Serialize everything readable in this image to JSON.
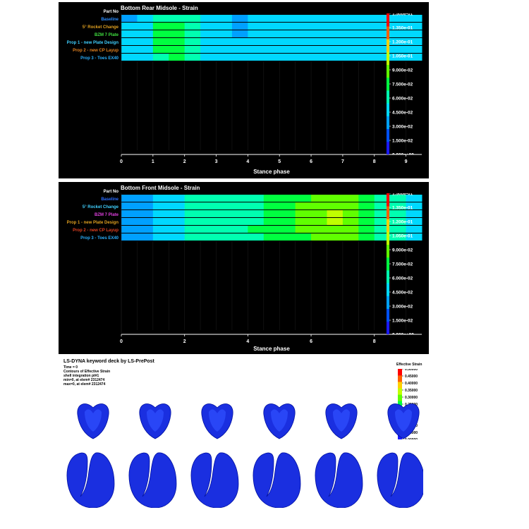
{
  "panels": [
    {
      "title": "Bottom Rear Midsole - Strain",
      "xlabel": "Stance phase",
      "row_header": "Part No",
      "rows": [
        "Baseline",
        "5° Rocket Change",
        "BZM 7 Plate",
        "Prop 1 - new Plate Design",
        "Prop 2 - new CP Layup",
        "Prop 3 - Toes EX40"
      ],
      "row_label_colors": [
        "#2a8cff",
        "#e0a020",
        "#40e040",
        "#40d0ff",
        "#e08020",
        "#2ab0ff"
      ],
      "x_ticks": [
        "0",
        "1",
        "2",
        "3",
        "4",
        "5",
        "6",
        "7",
        "8",
        "9"
      ],
      "colorbar_ticks": [
        "1.500e-01",
        "1.350e-01",
        "1.200e-01",
        "1.050e-01",
        "9.000e-02",
        "7.500e-02",
        "6.000e-02",
        "4.500e-02",
        "3.000e-02",
        "1.500e-02",
        "0.000e+00"
      ]
    },
    {
      "title": "Bottom Front Midsole - Strain",
      "xlabel": "Stance phase",
      "row_header": "Part No",
      "rows": [
        "Baseline",
        "5° Rocket Change",
        "BZM 7 Plate",
        "Prop 1 - new Plate Design",
        "Prop 2 - new CP Layup",
        "Prop 3 - Toes EX40"
      ],
      "row_label_colors": [
        "#2a6cff",
        "#40d0ff",
        "#e040e0",
        "#e0a020",
        "#e04020",
        "#2ab0ff"
      ],
      "x_ticks": [
        "0",
        "2",
        "4",
        "6",
        "8"
      ],
      "colorbar_ticks": [
        "1.500e-01",
        "1.350e-01",
        "1.200e-01",
        "1.050e-01",
        "9.000e-02",
        "7.500e-02",
        "6.000e-02",
        "4.500e-02",
        "3.000e-02",
        "1.500e-02",
        "0.000e+00"
      ]
    }
  ],
  "chart_data": [
    {
      "type": "heatmap",
      "title": "Bottom Rear Midsole - Strain",
      "xlabel": "Stance phase",
      "xlim": [
        0,
        9.5
      ],
      "clim": [
        0,
        0.15
      ],
      "rows": [
        "Baseline",
        "5° Rocket Change",
        "BZM 7 Plate",
        "Prop 1 - new Plate Design",
        "Prop 2 - new CP Layup",
        "Prop 3 - Toes EX40"
      ],
      "x": [
        0,
        0.5,
        1,
        1.5,
        2,
        2.5,
        3,
        3.5,
        4,
        4.5,
        5,
        5.5,
        6,
        6.5,
        7,
        7.5,
        8,
        8.5,
        9,
        9.5
      ],
      "values": [
        [
          0.03,
          0.05,
          0.06,
          0.065,
          0.06,
          0.05,
          0.045,
          0.03,
          0.045,
          0.05,
          0.05,
          0.05,
          0.045,
          0.045,
          0.045,
          0.045,
          0.045,
          0.045,
          0.045,
          0.045
        ],
        [
          0.04,
          0.05,
          0.07,
          0.075,
          0.065,
          0.05,
          0.04,
          0.035,
          0.045,
          0.05,
          0.05,
          0.05,
          0.05,
          0.05,
          0.05,
          0.05,
          0.05,
          0.05,
          0.05,
          0.05
        ],
        [
          0.04,
          0.05,
          0.075,
          0.08,
          0.065,
          0.05,
          0.04,
          0.035,
          0.045,
          0.05,
          0.05,
          0.05,
          0.05,
          0.045,
          0.045,
          0.045,
          0.045,
          0.04,
          0.05,
          0.05
        ],
        [
          0.04,
          0.05,
          0.07,
          0.075,
          0.065,
          0.05,
          0.045,
          0.04,
          0.045,
          0.05,
          0.05,
          0.05,
          0.05,
          0.05,
          0.05,
          0.05,
          0.05,
          0.05,
          0.05,
          0.05
        ],
        [
          0.04,
          0.05,
          0.07,
          0.075,
          0.065,
          0.05,
          0.045,
          0.04,
          0.045,
          0.05,
          0.05,
          0.05,
          0.05,
          0.05,
          0.05,
          0.05,
          0.05,
          0.05,
          0.05,
          0.05
        ],
        [
          0.04,
          0.05,
          0.065,
          0.07,
          0.06,
          0.05,
          0.045,
          0.04,
          0.045,
          0.05,
          0.05,
          0.05,
          0.05,
          0.05,
          0.05,
          0.05,
          0.05,
          0.05,
          0.05,
          0.05
        ]
      ]
    },
    {
      "type": "heatmap",
      "title": "Bottom Front Midsole - Strain",
      "xlabel": "Stance phase",
      "xlim": [
        0,
        9.5
      ],
      "clim": [
        0,
        0.15
      ],
      "rows": [
        "Baseline",
        "5° Rocket Change",
        "BZM 7 Plate",
        "Prop 1 - new Plate Design",
        "Prop 2 - new CP Layup",
        "Prop 3 - Toes EX40"
      ],
      "x": [
        0,
        0.5,
        1,
        1.5,
        2,
        2.5,
        3,
        3.5,
        4,
        4.5,
        5,
        5.5,
        6,
        6.5,
        7,
        7.5,
        8,
        8.5,
        9,
        9.5
      ],
      "values": [
        [
          0.03,
          0.035,
          0.04,
          0.045,
          0.055,
          0.06,
          0.06,
          0.06,
          0.065,
          0.07,
          0.075,
          0.08,
          0.09,
          0.095,
          0.09,
          0.075,
          0.06,
          0.055,
          0.05,
          0.045
        ],
        [
          0.03,
          0.035,
          0.04,
          0.045,
          0.055,
          0.06,
          0.06,
          0.06,
          0.065,
          0.075,
          0.08,
          0.085,
          0.09,
          0.095,
          0.09,
          0.075,
          0.06,
          0.055,
          0.05,
          0.045
        ],
        [
          0.03,
          0.035,
          0.04,
          0.045,
          0.055,
          0.06,
          0.06,
          0.06,
          0.065,
          0.075,
          0.08,
          0.09,
          0.095,
          0.1,
          0.095,
          0.075,
          0.06,
          0.055,
          0.05,
          0.045
        ],
        [
          0.03,
          0.035,
          0.04,
          0.045,
          0.055,
          0.06,
          0.06,
          0.06,
          0.065,
          0.075,
          0.08,
          0.09,
          0.095,
          0.1,
          0.095,
          0.08,
          0.065,
          0.055,
          0.05,
          0.045
        ],
        [
          0.03,
          0.035,
          0.04,
          0.045,
          0.055,
          0.06,
          0.06,
          0.065,
          0.07,
          0.075,
          0.08,
          0.085,
          0.09,
          0.095,
          0.09,
          0.08,
          0.065,
          0.055,
          0.05,
          0.045
        ],
        [
          0.03,
          0.035,
          0.04,
          0.045,
          0.055,
          0.06,
          0.06,
          0.06,
          0.065,
          0.07,
          0.075,
          0.08,
          0.085,
          0.09,
          0.085,
          0.075,
          0.06,
          0.055,
          0.05,
          0.045
        ]
      ]
    }
  ],
  "fea": {
    "title": "LS-DYNA keyword deck by LS-PrePost",
    "info_lines": [
      "Time =        0",
      "Contours of  Effective Strain",
      "shell integration pt#1",
      " min=0, at elem# 2312474",
      " max=0, at elem# 2312474"
    ],
    "legend_title": "Effective Strain",
    "legend_ticks": [
      "0.50000",
      "0.45000",
      "0.40000",
      "0.35000",
      "0.30000",
      "0.25000",
      "0.20000",
      "0.15000",
      "0.10000",
      "0.05000",
      "0.00000"
    ],
    "shoe_color": "#1a2fe0"
  }
}
